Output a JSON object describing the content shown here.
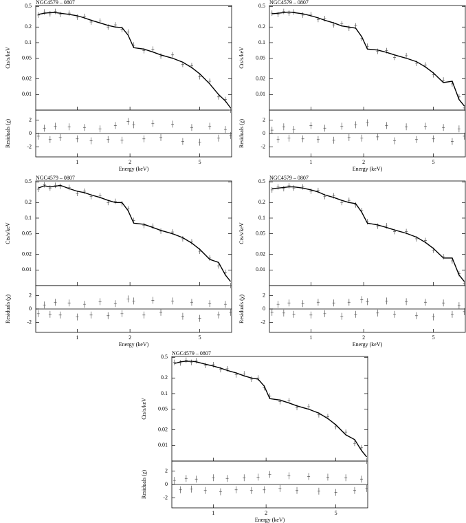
{
  "chart_data": [
    {
      "type": "spectrum",
      "title": "NGC4579 – 0807",
      "ylabel": "Cts/s/keV",
      "residual_ylabel": "Residuals (χ)",
      "xlabel": "Energy (keV)",
      "xlog": true,
      "ylog": true,
      "xlim": [
        0.58,
        7.6
      ],
      "xticks": [
        1,
        2,
        5
      ],
      "ylim": [
        0.005,
        0.52
      ],
      "yticks": [
        0.01,
        0.02,
        0.05,
        0.1,
        0.2,
        0.5
      ],
      "residual_ylim": [
        -3.5,
        3.5
      ],
      "residual_yticks": [
        -2,
        0,
        2
      ],
      "residual_ref": 0,
      "color": "#000000",
      "point_color": "#555555",
      "x": [
        0.6,
        0.65,
        0.7,
        0.75,
        0.8,
        0.9,
        1.0,
        1.1,
        1.2,
        1.35,
        1.5,
        1.65,
        1.8,
        1.95,
        2.1,
        2.4,
        2.7,
        3.0,
        3.5,
        4.0,
        4.5,
        5.0,
        5.7,
        6.4,
        7.0,
        7.5
      ],
      "model": [
        0.35,
        0.37,
        0.38,
        0.38,
        0.37,
        0.35,
        0.33,
        0.3,
        0.27,
        0.24,
        0.215,
        0.2,
        0.195,
        0.14,
        0.08,
        0.075,
        0.066,
        0.058,
        0.05,
        0.042,
        0.033,
        0.025,
        0.016,
        0.01,
        0.0075,
        0.0055
      ],
      "values": [
        0.34,
        0.39,
        0.36,
        0.4,
        0.35,
        0.37,
        0.31,
        0.32,
        0.25,
        0.26,
        0.2,
        0.22,
        0.18,
        0.16,
        0.09,
        0.07,
        0.075,
        0.055,
        0.058,
        0.038,
        0.036,
        0.022,
        0.018,
        0.009,
        0.008,
        0.005
      ],
      "residuals": [
        -0.4,
        0.8,
        -0.9,
        1.1,
        -0.6,
        1.0,
        -0.8,
        0.9,
        -1.1,
        0.7,
        -0.9,
        1.2,
        -1.0,
        1.8,
        1.3,
        -0.8,
        1.5,
        -0.6,
        1.4,
        -1.2,
        0.9,
        -1.3,
        1.1,
        -0.7,
        0.6,
        -0.3
      ]
    },
    {
      "type": "spectrum",
      "title": "NGC4579 – 0807",
      "ylabel": "Cts/s/keV",
      "residual_ylabel": "Residuals (χ)",
      "xlabel": "Energy (keV)",
      "xlog": true,
      "ylog": true,
      "xlim": [
        0.58,
        7.6
      ],
      "xticks": [
        1,
        2,
        5
      ],
      "ylim": [
        0.005,
        0.52
      ],
      "yticks": [
        0.01,
        0.02,
        0.05,
        0.1,
        0.2,
        0.5
      ],
      "residual_ylim": [
        -3.5,
        3.5
      ],
      "residual_yticks": [
        -2,
        0,
        2
      ],
      "residual_ref": 0,
      "color": "#000000",
      "point_color": "#555555",
      "x": [
        0.6,
        0.65,
        0.7,
        0.75,
        0.8,
        0.9,
        1.0,
        1.1,
        1.2,
        1.35,
        1.5,
        1.65,
        1.8,
        1.95,
        2.1,
        2.4,
        2.7,
        3.0,
        3.5,
        4.0,
        4.5,
        5.0,
        5.7,
        6.4,
        7.0,
        7.5
      ],
      "model": [
        0.36,
        0.37,
        0.38,
        0.39,
        0.38,
        0.36,
        0.33,
        0.3,
        0.27,
        0.24,
        0.21,
        0.2,
        0.19,
        0.13,
        0.075,
        0.072,
        0.065,
        0.058,
        0.05,
        0.043,
        0.034,
        0.026,
        0.017,
        0.018,
        0.008,
        0.006
      ],
      "values": [
        0.37,
        0.35,
        0.4,
        0.37,
        0.39,
        0.34,
        0.35,
        0.28,
        0.29,
        0.22,
        0.23,
        0.19,
        0.21,
        0.12,
        0.085,
        0.068,
        0.07,
        0.052,
        0.056,
        0.04,
        0.037,
        0.024,
        0.019,
        0.016,
        0.009,
        0.0055
      ],
      "residuals": [
        0.5,
        -0.9,
        1.0,
        -0.7,
        0.6,
        -0.8,
        1.2,
        -0.9,
        0.8,
        -1.0,
        1.1,
        -0.6,
        1.3,
        -0.7,
        1.6,
        -0.5,
        1.2,
        -1.1,
        1.0,
        -0.9,
        1.1,
        -0.8,
        0.9,
        -1.2,
        0.7,
        -0.4
      ]
    },
    {
      "type": "spectrum",
      "title": "NGC4579 – 0807",
      "ylabel": "Cts/s/keV",
      "residual_ylabel": "Residuals (χ)",
      "xlabel": "Energy (keV)",
      "xlog": true,
      "ylog": true,
      "xlim": [
        0.58,
        7.6
      ],
      "xticks": [
        1,
        2,
        5
      ],
      "ylim": [
        0.005,
        0.52
      ],
      "yticks": [
        0.01,
        0.02,
        0.05,
        0.1,
        0.2,
        0.5
      ],
      "residual_ylim": [
        -3.5,
        3.5
      ],
      "residual_yticks": [
        -2,
        0,
        2
      ],
      "residual_ref": 0,
      "color": "#000000",
      "point_color": "#555555",
      "x": [
        0.6,
        0.65,
        0.7,
        0.75,
        0.8,
        0.9,
        1.0,
        1.1,
        1.2,
        1.35,
        1.5,
        1.65,
        1.8,
        1.95,
        2.1,
        2.4,
        2.7,
        3.0,
        3.5,
        4.0,
        4.5,
        5.0,
        5.7,
        6.4,
        7.0,
        7.5
      ],
      "model": [
        0.38,
        0.42,
        0.4,
        0.41,
        0.43,
        0.37,
        0.33,
        0.31,
        0.28,
        0.25,
        0.22,
        0.2,
        0.2,
        0.14,
        0.08,
        0.076,
        0.066,
        0.058,
        0.05,
        0.042,
        0.033,
        0.025,
        0.016,
        0.014,
        0.008,
        0.006
      ],
      "values": [
        0.36,
        0.44,
        0.38,
        0.43,
        0.41,
        0.39,
        0.3,
        0.33,
        0.26,
        0.27,
        0.2,
        0.21,
        0.19,
        0.15,
        0.09,
        0.072,
        0.07,
        0.056,
        0.054,
        0.04,
        0.035,
        0.023,
        0.017,
        0.012,
        0.009,
        0.005
      ],
      "residuals": [
        -0.7,
        0.6,
        -0.8,
        1.0,
        -0.9,
        0.9,
        -1.2,
        0.7,
        -0.9,
        1.1,
        -1.0,
        0.8,
        -0.7,
        1.5,
        1.2,
        -0.9,
        1.3,
        -0.5,
        1.2,
        -1.1,
        1.0,
        -1.4,
        0.8,
        -0.9,
        0.7,
        -0.5
      ]
    },
    {
      "type": "spectrum",
      "title": "NGC4579 – 0807",
      "ylabel": "Cts/s/keV",
      "residual_ylabel": "Residuals (χ)",
      "xlabel": "Energy (keV)",
      "xlog": true,
      "ylog": true,
      "xlim": [
        0.58,
        7.6
      ],
      "xticks": [
        1,
        2,
        5
      ],
      "ylim": [
        0.005,
        0.52
      ],
      "yticks": [
        0.01,
        0.02,
        0.05,
        0.1,
        0.2,
        0.5
      ],
      "residual_ylim": [
        -3.5,
        3.5
      ],
      "residual_yticks": [
        -2,
        0,
        2
      ],
      "residual_ref": 0,
      "color": "#000000",
      "point_color": "#555555",
      "x": [
        0.6,
        0.65,
        0.7,
        0.75,
        0.8,
        0.9,
        1.0,
        1.1,
        1.2,
        1.35,
        1.5,
        1.65,
        1.8,
        1.95,
        2.1,
        2.4,
        2.7,
        3.0,
        3.5,
        4.0,
        4.5,
        5.0,
        5.7,
        6.4,
        7.0,
        7.5
      ],
      "model": [
        0.37,
        0.38,
        0.39,
        0.4,
        0.4,
        0.38,
        0.35,
        0.32,
        0.28,
        0.25,
        0.22,
        0.2,
        0.19,
        0.13,
        0.08,
        0.074,
        0.066,
        0.059,
        0.051,
        0.043,
        0.034,
        0.026,
        0.017,
        0.017,
        0.008,
        0.006
      ],
      "values": [
        0.35,
        0.4,
        0.37,
        0.42,
        0.38,
        0.4,
        0.33,
        0.34,
        0.26,
        0.27,
        0.2,
        0.22,
        0.18,
        0.14,
        0.085,
        0.07,
        0.071,
        0.055,
        0.055,
        0.04,
        0.037,
        0.024,
        0.018,
        0.015,
        0.0085,
        0.0055
      ],
      "residuals": [
        -0.5,
        0.7,
        -0.6,
        0.9,
        -0.8,
        0.8,
        -0.9,
        1.0,
        -0.7,
        0.9,
        -1.1,
        1.0,
        -0.8,
        1.4,
        1.1,
        -0.6,
        1.2,
        -0.8,
        1.1,
        -1.0,
        1.0,
        -1.2,
        0.9,
        -0.8,
        0.5,
        -0.4
      ]
    },
    {
      "type": "spectrum",
      "title": "NGC4579 – 0807",
      "ylabel": "Cts/s/keV",
      "residual_ylabel": "Residuals (χ)",
      "xlabel": "Energy (keV)",
      "xlog": true,
      "ylog": true,
      "xlim": [
        0.58,
        7.6
      ],
      "xticks": [
        1,
        2,
        5
      ],
      "ylim": [
        0.005,
        0.52
      ],
      "yticks": [
        0.01,
        0.02,
        0.05,
        0.1,
        0.2,
        0.5
      ],
      "residual_ylim": [
        -3.5,
        3.5
      ],
      "residual_yticks": [
        -2,
        0,
        2
      ],
      "residual_ref": 0,
      "color": "#000000",
      "point_color": "#555555",
      "x": [
        0.6,
        0.65,
        0.7,
        0.75,
        0.8,
        0.9,
        1.0,
        1.1,
        1.2,
        1.35,
        1.5,
        1.65,
        1.8,
        1.95,
        2.1,
        2.4,
        2.7,
        3.0,
        3.5,
        4.0,
        4.5,
        5.0,
        5.7,
        6.4,
        7.0,
        7.5
      ],
      "model": [
        0.38,
        0.41,
        0.42,
        0.42,
        0.41,
        0.37,
        0.34,
        0.31,
        0.28,
        0.25,
        0.22,
        0.2,
        0.19,
        0.14,
        0.08,
        0.075,
        0.066,
        0.058,
        0.05,
        0.042,
        0.033,
        0.025,
        0.016,
        0.013,
        0.008,
        0.006
      ],
      "values": [
        0.4,
        0.39,
        0.44,
        0.4,
        0.43,
        0.35,
        0.36,
        0.29,
        0.3,
        0.23,
        0.24,
        0.19,
        0.2,
        0.13,
        0.09,
        0.07,
        0.073,
        0.054,
        0.056,
        0.039,
        0.036,
        0.023,
        0.018,
        0.011,
        0.009,
        0.005
      ],
      "residuals": [
        0.6,
        -0.8,
        0.9,
        -0.7,
        0.8,
        -0.9,
        1.0,
        -1.1,
        0.9,
        -0.8,
        1.0,
        -0.9,
        1.1,
        -0.8,
        1.5,
        -0.6,
        1.3,
        -0.9,
        1.2,
        -1.0,
        1.1,
        -1.2,
        1.0,
        -0.9,
        0.8,
        -0.6
      ]
    }
  ]
}
